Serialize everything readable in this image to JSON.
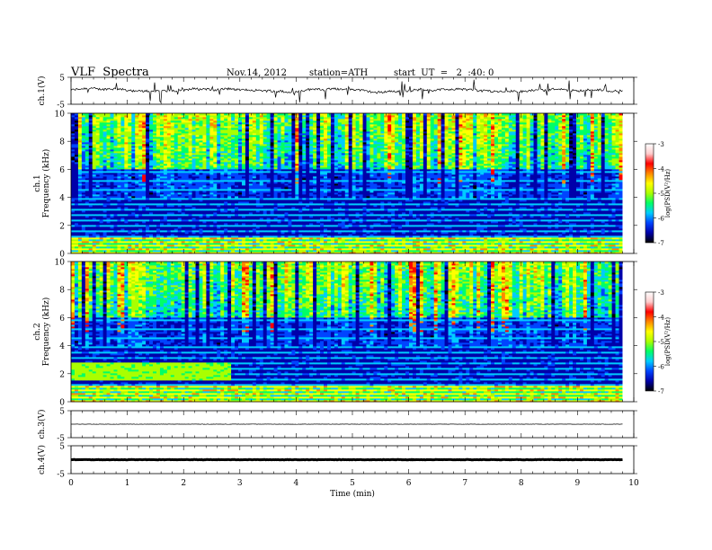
{
  "header": {
    "title": "VLF  Spectra",
    "date": "Nov.14, 2012",
    "station": "station=ATH",
    "start": "start  UT  =   2  :40: 0"
  },
  "colors": {
    "colormap": [
      "#000000",
      "#0000aa",
      "#0044ff",
      "#00ccff",
      "#00ff66",
      "#aaff00",
      "#ffff00",
      "#ff8800",
      "#ff0000",
      "#ffcccc",
      "#ffffff"
    ]
  },
  "chart_data": [
    {
      "type": "line",
      "name": "ch1-waveform",
      "ylabel": "ch.1(V)",
      "ylim": [
        -5,
        5
      ],
      "yticks": [
        "5",
        "-5"
      ],
      "xlim": [
        0,
        10
      ],
      "x_extent": [
        0,
        9.8
      ],
      "baseline_V": 0.2
    },
    {
      "type": "heatmap",
      "name": "ch1-spectrogram",
      "ylabel": "ch.1\nFrequency (kHz)",
      "ylim": [
        0,
        10
      ],
      "yticks": [
        "0",
        "2",
        "4",
        "6",
        "8",
        "10"
      ],
      "xlim": [
        0,
        10
      ],
      "x_extent": [
        0,
        9.8
      ],
      "colorbar": {
        "label": "log(PSD(V²/Hz)",
        "range": [
          -7,
          -3
        ],
        "ticks": [
          "-3",
          "-4",
          "-5",
          "-6",
          "-7"
        ]
      }
    },
    {
      "type": "heatmap",
      "name": "ch2-spectrogram",
      "ylabel": "ch.2\nFrequency (kHz)",
      "ylim": [
        0,
        10
      ],
      "yticks": [
        "0",
        "2",
        "4",
        "6",
        "8",
        "10"
      ],
      "xlim": [
        0,
        10
      ],
      "x_extent": [
        0,
        9.8
      ],
      "colorbar": {
        "label": "log(PSD(V²/Hz)",
        "range": [
          -7,
          -3
        ],
        "ticks": [
          "-3",
          "-4",
          "-5",
          "-6",
          "-7"
        ]
      }
    },
    {
      "type": "line",
      "name": "ch3-waveform",
      "ylabel": "ch.3(V)",
      "ylim": [
        -5,
        5
      ],
      "yticks": [
        "5",
        "-5"
      ],
      "xlim": [
        0,
        10
      ],
      "x_extent": [
        0,
        9.8
      ],
      "baseline_V": 0
    },
    {
      "type": "line",
      "name": "ch4-waveform",
      "ylabel": "ch.4(V)",
      "ylim": [
        -5,
        5
      ],
      "yticks": [
        "5",
        "-5"
      ],
      "xlim": [
        0,
        10
      ],
      "x_extent": [
        0,
        9.8
      ],
      "baseline_V": 0
    }
  ],
  "xaxis": {
    "label": "Time  (min)",
    "ticks": [
      "0",
      "1",
      "2",
      "3",
      "4",
      "5",
      "6",
      "7",
      "8",
      "9",
      "10"
    ]
  }
}
